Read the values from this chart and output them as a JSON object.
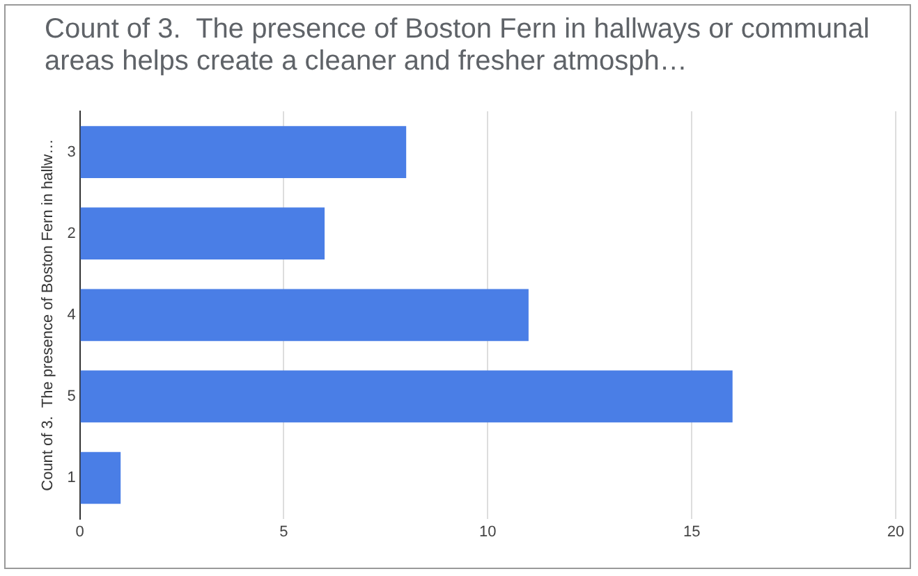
{
  "chart_data": {
    "type": "bar",
    "orientation": "horizontal",
    "title": "Count of 3.  The presence of Boston Fern in hallways or communal areas helps create a cleaner and fresher atmosph…",
    "ylabel": "Count of 3.  The presence of Boston Fern in hallw…",
    "categories": [
      "3",
      "2",
      "4",
      "5",
      "1"
    ],
    "values": [
      8,
      6,
      11,
      16,
      1
    ],
    "color": "#4a7ee6",
    "xlim": [
      0,
      20
    ],
    "xticks": [
      0,
      5,
      10,
      15,
      20
    ],
    "grid": "x",
    "legend": false
  }
}
